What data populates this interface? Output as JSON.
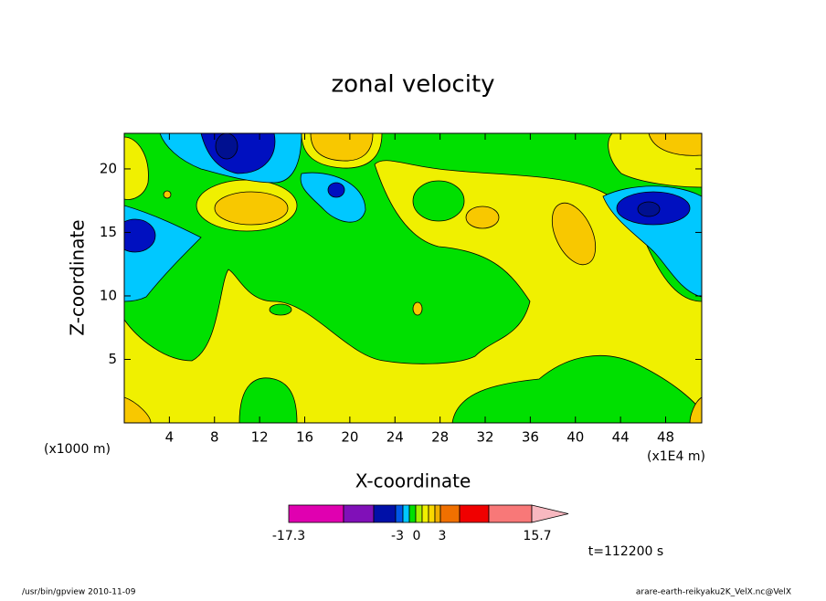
{
  "chart_data": {
    "type": "contour",
    "title": "zonal velocity",
    "xlabel": "X-coordinate",
    "ylabel": "Z-coordinate",
    "x_unit": "(x1E4 m)",
    "y_unit": "(x1000 m)",
    "xlim": [
      0,
      51.2
    ],
    "xticks": [
      4,
      8,
      12,
      16,
      20,
      24,
      28,
      32,
      36,
      40,
      44,
      48
    ],
    "ylim": [
      0,
      22.8
    ],
    "yticks": [
      5,
      10,
      15,
      20
    ],
    "colorbar": {
      "ticks": [
        -17.3,
        -3,
        0,
        3,
        15.7
      ],
      "colors": [
        "#e000b0",
        "#8010b8",
        "#0010a8",
        "#0058e8",
        "#00c8ff",
        "#00e000",
        "#a8f000",
        "#f0f000",
        "#f8d800",
        "#f0b000",
        "#f07000",
        "#f00000",
        "#f87878",
        "#f8b8c0"
      ]
    },
    "time_label": "t=112200 s"
  },
  "footer": {
    "left": "/usr/bin/gpview  2010-11-09",
    "right": "arare-earth-reikyaku2K_VelX.nc@VelX"
  }
}
